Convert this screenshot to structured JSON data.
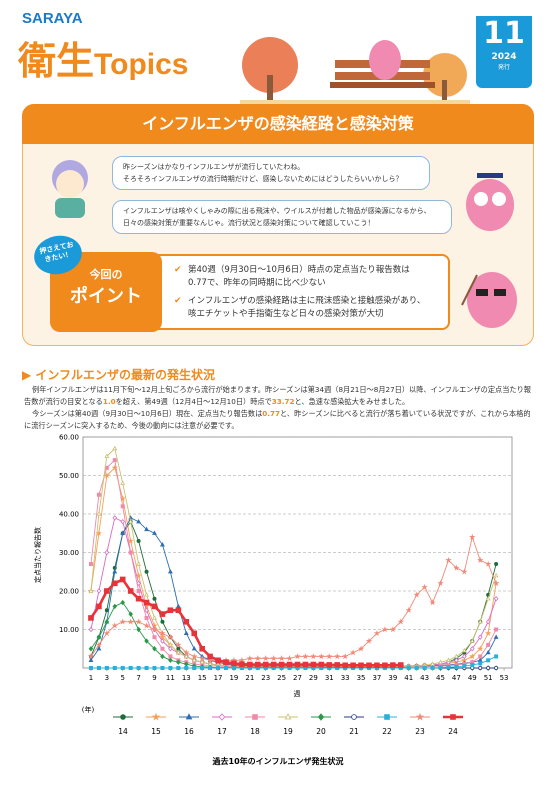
{
  "header": {
    "brand": "SARAYA",
    "title_kanji": "衛生",
    "title_latin": "Topics",
    "issue_month": "11",
    "issue_year": "2024",
    "issue_note": "発行"
  },
  "banner": "インフルエンザの感染経路と感染対策",
  "dialogue": [
    [
      "昨シーズンはかなりインフルエンザが流行していたわね。",
      "そろそろインフルエンザの流行時期だけど、感染しないためにはどうしたらいいかしら？"
    ],
    [
      "インフルエンザは咳やくしゃみの際に出る飛沫や、ウイルスが付着した物品が感染源になるから、",
      "日々の感染対策が重要なんじゃ。流行状況と感染対策について確認していこう！"
    ]
  ],
  "points": {
    "badge": "押さえておきたい！",
    "label_top": "今回の",
    "label_main": "ポイント",
    "items": [
      [
        "第40週（9月30日〜10月6日）時点の定点当たり報告数は",
        "0.77で、昨年の同時期に比べ少ない"
      ],
      [
        "インフルエンザの感染経路は主に飛沫感染と接触感染があり、",
        "咳エチケットや手指衛生など日々の感染対策が大切"
      ]
    ]
  },
  "section": {
    "heading": "インフルエンザの最新の発生状況",
    "paragraphs": [
      [
        "例年インフルエンザは11月下旬〜12月上旬ごろから流行が始まります。昨シーズンは第34週（8月21日〜8月27日）以降、インフルエンザの定点当たり報告数が流行の目安となる",
        "1.0",
        "を超え、第49週（12月4日〜12月10日）時点で",
        "33.72",
        "と、急速な感染拡大をみせました。"
      ],
      [
        "今シーズンは第40週（9月30日〜10月6日）現在、定点当たり報告数は",
        "0.77",
        "と、昨シーズンに比べると流行が落ち着いている状況ですが、これから本格的に流行シーズンに突入するため、今後の動向には注意が必要です。"
      ]
    ]
  },
  "chart_data": {
    "type": "line",
    "y_label": "定点当たり報告数",
    "x_label": "週",
    "legend_title": "(年)",
    "caption": "過去10年のインフルエンザ発生状況",
    "grid": true,
    "xlim": [
      0,
      54
    ],
    "ylim": [
      0,
      60
    ],
    "xticks": [
      1,
      3,
      5,
      7,
      9,
      11,
      13,
      15,
      17,
      19,
      21,
      23,
      25,
      27,
      29,
      31,
      33,
      35,
      37,
      39,
      41,
      43,
      45,
      47,
      49,
      51,
      53
    ],
    "yticks": [
      {
        "value": 10,
        "label": "10.00"
      },
      {
        "value": 20,
        "label": "20.00"
      },
      {
        "value": 30,
        "label": "30.00"
      },
      {
        "value": 40,
        "label": "40.00"
      },
      {
        "value": 50,
        "label": "50.00"
      },
      {
        "value": 60,
        "label": "60.00"
      }
    ],
    "x": [
      1,
      2,
      3,
      4,
      5,
      6,
      7,
      8,
      9,
      10,
      11,
      12,
      13,
      14,
      15,
      16,
      17,
      18,
      19,
      20,
      21,
      22,
      23,
      24,
      25,
      26,
      27,
      28,
      29,
      30,
      31,
      32,
      33,
      34,
      35,
      36,
      37,
      38,
      39,
      40,
      41,
      42,
      43,
      44,
      45,
      46,
      47,
      48,
      49,
      50,
      51,
      52,
      53
    ],
    "series": [
      {
        "name": "14",
        "color": "#1f6b3a",
        "marker": "circle",
        "values": [
          3,
          8,
          15,
          26,
          35,
          38,
          33,
          25,
          18,
          12,
          8,
          5,
          3,
          2,
          1.5,
          1,
          0.8,
          0.6,
          0.5,
          0.4,
          0.3,
          0.3,
          0.3,
          0.3,
          0.3,
          0.3,
          0.3,
          0.3,
          0.3,
          0.3,
          0.3,
          0.3,
          0.3,
          0.3,
          0.3,
          0.3,
          0.3,
          0.4,
          0.4,
          0.5,
          0.5,
          0.6,
          0.7,
          0.8,
          1,
          1.5,
          2.5,
          4,
          7,
          12,
          19,
          27,
          null
        ]
      },
      {
        "name": "15",
        "color": "#f5a05a",
        "marker": "star",
        "values": [
          20,
          35,
          50,
          52,
          44,
          33,
          24,
          16,
          11,
          8,
          6,
          4,
          3,
          2,
          1.5,
          1,
          0.8,
          0.6,
          0.5,
          0.4,
          0.3,
          0.3,
          0.3,
          0.3,
          0.3,
          0.3,
          0.3,
          0.3,
          0.3,
          0.3,
          0.3,
          0.3,
          0.3,
          0.3,
          0.3,
          0.3,
          0.3,
          0.4,
          0.4,
          0.5,
          0.5,
          0.6,
          0.7,
          0.8,
          1,
          1.2,
          1.5,
          2,
          3,
          5,
          9,
          22,
          null
        ]
      },
      {
        "name": "16",
        "color": "#2f6fb0",
        "marker": "triangle",
        "values": [
          2,
          5,
          12,
          25,
          35,
          39,
          38,
          36,
          35,
          32,
          25,
          16,
          9,
          5,
          3,
          2,
          1.5,
          1,
          0.8,
          0.6,
          0.5,
          0.5,
          0.5,
          0.5,
          0.5,
          0.5,
          0.5,
          0.5,
          0.5,
          0.5,
          0.4,
          0.4,
          0.4,
          0.4,
          0.4,
          0.4,
          0.4,
          0.4,
          0.4,
          0.4,
          0.4,
          0.5,
          0.5,
          0.6,
          0.7,
          0.8,
          1,
          1.2,
          1.5,
          2,
          4,
          8,
          null
        ]
      },
      {
        "name": "17",
        "color": "#d96bc4",
        "marker": "diamond-open",
        "values": [
          10,
          20,
          30,
          39,
          38,
          30,
          22,
          15,
          10,
          7,
          5,
          4,
          3,
          2,
          1.5,
          1,
          0.8,
          0.6,
          0.5,
          0.4,
          0.3,
          0.3,
          0.3,
          0.3,
          0.3,
          0.3,
          0.3,
          0.3,
          0.3,
          0.3,
          0.3,
          0.3,
          0.3,
          0.3,
          0.3,
          0.3,
          0.3,
          0.3,
          0.3,
          0.3,
          0.4,
          0.5,
          0.6,
          0.8,
          1,
          1.5,
          2,
          3,
          5,
          8,
          12,
          18,
          null
        ]
      },
      {
        "name": "18",
        "color": "#f08aa8",
        "marker": "square",
        "values": [
          27,
          45,
          52,
          54,
          42,
          30,
          20,
          13,
          8,
          5,
          3,
          2,
          1.5,
          1,
          0.8,
          0.6,
          0.5,
          0.4,
          0.3,
          0.3,
          0.2,
          0.2,
          0.2,
          0.2,
          0.2,
          0.2,
          0.2,
          0.2,
          0.2,
          0.2,
          0.2,
          0.2,
          0.2,
          0.2,
          0.2,
          0.2,
          0.2,
          0.2,
          0.2,
          0.2,
          0.2,
          0.3,
          0.3,
          0.4,
          0.5,
          0.6,
          0.8,
          1,
          1.5,
          3,
          6,
          10,
          null
        ]
      },
      {
        "name": "19",
        "color": "#c8c070",
        "marker": "triangle-open",
        "values": [
          20,
          40,
          55,
          57,
          48,
          38,
          27,
          19,
          13,
          9,
          6,
          4,
          3,
          2,
          1.5,
          1,
          0.8,
          0.6,
          0.5,
          0.4,
          0.3,
          0.3,
          0.3,
          0.3,
          0.3,
          0.3,
          0.3,
          0.3,
          0.3,
          0.3,
          0.3,
          0.3,
          0.3,
          0.3,
          0.3,
          0.3,
          0.3,
          0.3,
          0.3,
          0.3,
          0.4,
          0.5,
          0.7,
          1,
          1.5,
          2,
          3,
          4.5,
          7,
          12,
          18,
          24,
          null
        ]
      },
      {
        "name": "20",
        "color": "#2a9a4a",
        "marker": "diamond",
        "values": [
          5,
          8,
          12,
          16,
          17,
          14,
          10,
          7,
          5,
          3,
          2,
          1.5,
          1,
          0.5,
          0.3,
          0.2,
          0.1,
          0.1,
          0.1,
          0.1,
          0.1,
          0.1,
          0.1,
          0.1,
          0.1,
          0.1,
          0.1,
          0.1,
          0.1,
          0.1,
          0.1,
          0.1,
          0.1,
          0.1,
          0.1,
          0.1,
          0.1,
          0.1,
          0.1,
          0.1,
          0,
          0,
          0,
          0,
          0,
          0,
          0,
          0,
          0,
          0,
          0,
          0,
          null
        ]
      },
      {
        "name": "21",
        "color": "#2a3a80",
        "marker": "circle-open",
        "values": [
          0,
          0,
          0,
          0,
          0,
          0,
          0,
          0,
          0,
          0,
          0,
          0,
          0,
          0,
          0,
          0,
          0,
          0,
          0,
          0,
          0,
          0,
          0,
          0,
          0,
          0,
          0,
          0,
          0,
          0,
          0,
          0,
          0,
          0,
          0,
          0,
          0,
          0,
          0,
          0,
          0,
          0,
          0,
          0,
          0,
          0,
          0,
          0,
          0,
          0,
          0,
          0,
          null
        ]
      },
      {
        "name": "22",
        "color": "#29b0d8",
        "marker": "square",
        "values": [
          0,
          0,
          0,
          0,
          0,
          0,
          0,
          0,
          0,
          0,
          0,
          0,
          0,
          0,
          0,
          0,
          0,
          0,
          0,
          0,
          0,
          0,
          0,
          0,
          0,
          0,
          0,
          0,
          0,
          0,
          0,
          0,
          0,
          0,
          0,
          0,
          0,
          0,
          0,
          0,
          0,
          0,
          0,
          0,
          0.1,
          0.2,
          0.3,
          0.5,
          0.8,
          1.2,
          2,
          3,
          null
        ]
      },
      {
        "name": "23",
        "color": "#f08a78",
        "marker": "star",
        "values": [
          3,
          6,
          9,
          11,
          12,
          12,
          12,
          11,
          10,
          9,
          8,
          6,
          4,
          3,
          2.5,
          2,
          2,
          2,
          2,
          2,
          2.5,
          2.5,
          2.5,
          2.5,
          2.5,
          2.5,
          3,
          3,
          3,
          3,
          3,
          3,
          3,
          4,
          5,
          7,
          9,
          10,
          10,
          12,
          15,
          19,
          21,
          17,
          22,
          28,
          26,
          25,
          34,
          28,
          27,
          22,
          null
        ]
      },
      {
        "name": "24",
        "color": "#e8333a",
        "marker": "square",
        "width": 2.6,
        "values": [
          13,
          16,
          20,
          22,
          23,
          20,
          18,
          17,
          16,
          14,
          15,
          15,
          12,
          9,
          5,
          3,
          2,
          1.5,
          1.2,
          1,
          0.9,
          0.9,
          0.9,
          0.9,
          0.9,
          0.9,
          0.9,
          0.9,
          0.9,
          0.9,
          0.8,
          0.8,
          0.7,
          0.7,
          0.7,
          0.7,
          0.7,
          0.7,
          0.75,
          0.77,
          null,
          null,
          null,
          null,
          null,
          null,
          null,
          null,
          null,
          null,
          null,
          null,
          null
        ]
      }
    ]
  }
}
